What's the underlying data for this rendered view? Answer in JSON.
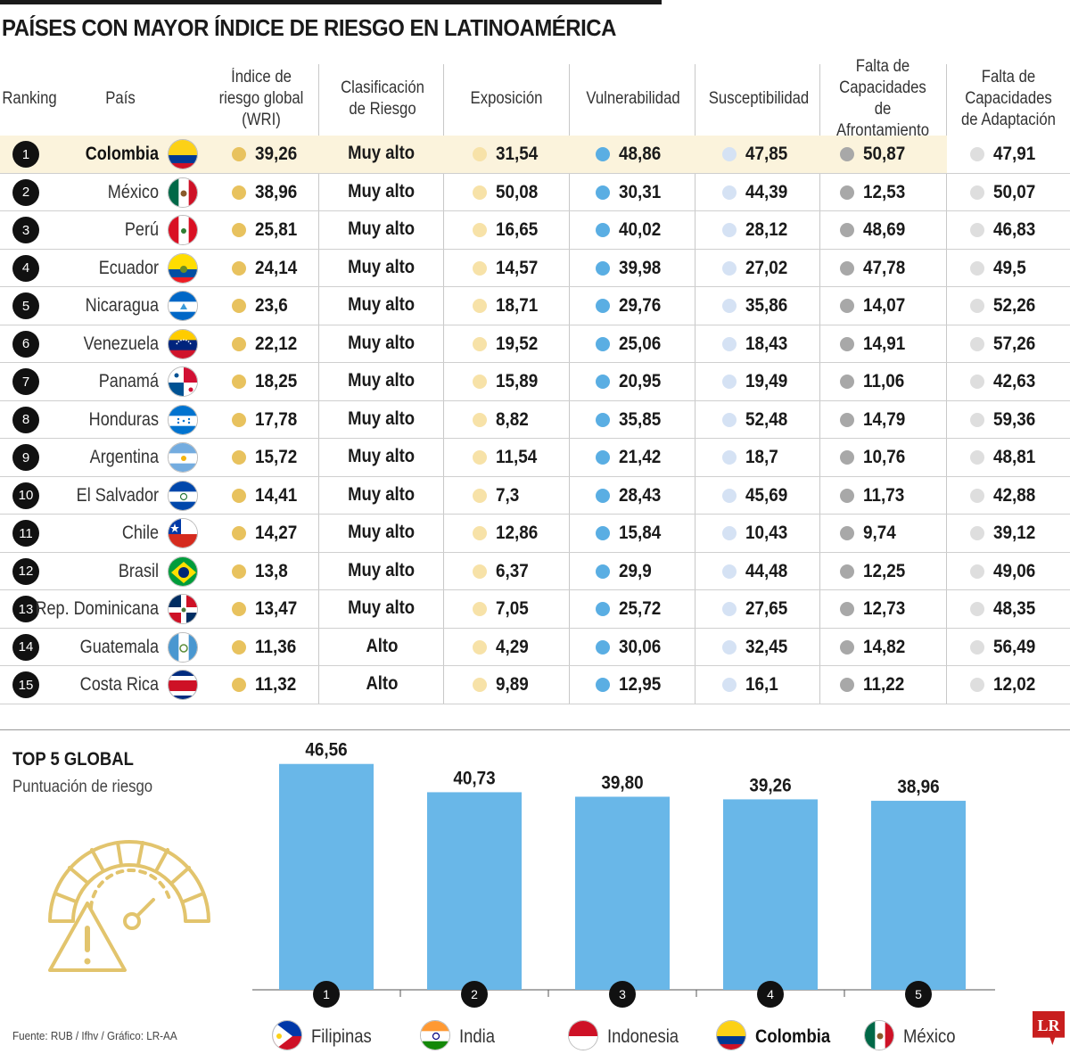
{
  "title": "PAÍSES CON MAYOR ÍNDICE DE RIESGO EN LATINOAMÉRICA",
  "columns": {
    "ranking": "Ranking",
    "pais": "País",
    "wri": "Índice de riesgo global (WRI)",
    "clasificacion": "Clasificación de Riesgo",
    "exposicion": "Exposición",
    "vulnerabilidad": "Vulnerabilidad",
    "susceptibilidad": "Susceptibilidad",
    "afrontamiento": "Falta de Capacidades de Afrontamiento",
    "adaptacion": "Falta de Capacidades de Adaptación"
  },
  "colors": {
    "wri": "#e8c25e",
    "exposicion": "#f7e2a8",
    "vulnerabilidad": "#5aaee3",
    "susceptibilidad": "#d5e2f4",
    "afrontamiento": "#a8a8a8",
    "adaptacion": "#dedede",
    "bar": "#69b7e8",
    "highlight_row": "#fbf3dc"
  },
  "rows": [
    {
      "rank": "1",
      "country": "Colombia",
      "flag": "colombia",
      "wri": "39,26",
      "clasificacion": "Muy alto",
      "exposicion": "31,54",
      "vulnerabilidad": "48,86",
      "susceptibilidad": "47,85",
      "afrontamiento": "50,87",
      "adaptacion": "47,91",
      "highlight": true
    },
    {
      "rank": "2",
      "country": "México",
      "flag": "mexico",
      "wri": "38,96",
      "clasificacion": "Muy alto",
      "exposicion": "50,08",
      "vulnerabilidad": "30,31",
      "susceptibilidad": "44,39",
      "afrontamiento": "12,53",
      "adaptacion": "50,07"
    },
    {
      "rank": "3",
      "country": "Perú",
      "flag": "peru",
      "wri": "25,81",
      "clasificacion": "Muy alto",
      "exposicion": "16,65",
      "vulnerabilidad": "40,02",
      "susceptibilidad": "28,12",
      "afrontamiento": "48,69",
      "adaptacion": "46,83"
    },
    {
      "rank": "4",
      "country": "Ecuador",
      "flag": "ecuador",
      "wri": "24,14",
      "clasificacion": "Muy alto",
      "exposicion": "14,57",
      "vulnerabilidad": "39,98",
      "susceptibilidad": "27,02",
      "afrontamiento": "47,78",
      "adaptacion": "49,5"
    },
    {
      "rank": "5",
      "country": "Nicaragua",
      "flag": "nicaragua",
      "wri": "23,6",
      "clasificacion": "Muy alto",
      "exposicion": "18,71",
      "vulnerabilidad": "29,76",
      "susceptibilidad": "35,86",
      "afrontamiento": "14,07",
      "adaptacion": "52,26"
    },
    {
      "rank": "6",
      "country": "Venezuela",
      "flag": "venezuela",
      "wri": "22,12",
      "clasificacion": "Muy alto",
      "exposicion": "19,52",
      "vulnerabilidad": "25,06",
      "susceptibilidad": "18,43",
      "afrontamiento": "14,91",
      "adaptacion": "57,26"
    },
    {
      "rank": "7",
      "country": "Panamá",
      "flag": "panama",
      "wri": "18,25",
      "clasificacion": "Muy alto",
      "exposicion": "15,89",
      "vulnerabilidad": "20,95",
      "susceptibilidad": "19,49",
      "afrontamiento": "11,06",
      "adaptacion": "42,63"
    },
    {
      "rank": "8",
      "country": "Honduras",
      "flag": "honduras",
      "wri": "17,78",
      "clasificacion": "Muy alto",
      "exposicion": "8,82",
      "vulnerabilidad": "35,85",
      "susceptibilidad": "52,48",
      "afrontamiento": "14,79",
      "adaptacion": "59,36"
    },
    {
      "rank": "9",
      "country": "Argentina",
      "flag": "argentina",
      "wri": "15,72",
      "clasificacion": "Muy alto",
      "exposicion": "11,54",
      "vulnerabilidad": "21,42",
      "susceptibilidad": "18,7",
      "afrontamiento": "10,76",
      "adaptacion": "48,81"
    },
    {
      "rank": "10",
      "country": "El Salvador",
      "flag": "elsalvador",
      "wri": "14,41",
      "clasificacion": "Muy alto",
      "exposicion": "7,3",
      "vulnerabilidad": "28,43",
      "susceptibilidad": "45,69",
      "afrontamiento": "11,73",
      "adaptacion": "42,88"
    },
    {
      "rank": "11",
      "country": "Chile",
      "flag": "chile",
      "wri": "14,27",
      "clasificacion": "Muy alto",
      "exposicion": "12,86",
      "vulnerabilidad": "15,84",
      "susceptibilidad": "10,43",
      "afrontamiento": "9,74",
      "adaptacion": "39,12"
    },
    {
      "rank": "12",
      "country": "Brasil",
      "flag": "brasil",
      "wri": "13,8",
      "clasificacion": "Muy alto",
      "exposicion": "6,37",
      "vulnerabilidad": "29,9",
      "susceptibilidad": "44,48",
      "afrontamiento": "12,25",
      "adaptacion": "49,06"
    },
    {
      "rank": "13",
      "country": "Rep. Dominicana",
      "flag": "repdominicana",
      "wri": "13,47",
      "clasificacion": "Muy alto",
      "exposicion": "7,05",
      "vulnerabilidad": "25,72",
      "susceptibilidad": "27,65",
      "afrontamiento": "12,73",
      "adaptacion": "48,35"
    },
    {
      "rank": "14",
      "country": "Guatemala",
      "flag": "guatemala",
      "wri": "11,36",
      "clasificacion": "Alto",
      "exposicion": "4,29",
      "vulnerabilidad": "30,06",
      "susceptibilidad": "32,45",
      "afrontamiento": "14,82",
      "adaptacion": "56,49"
    },
    {
      "rank": "15",
      "country": "Costa Rica",
      "flag": "costarica",
      "wri": "11,32",
      "clasificacion": "Alto",
      "exposicion": "9,89",
      "vulnerabilidad": "12,95",
      "susceptibilidad": "16,1",
      "afrontamiento": "11,22",
      "adaptacion": "12,02"
    }
  ],
  "top5": {
    "title": "TOP 5 GLOBAL",
    "subtitle": "Puntuación de riesgo",
    "icon": "gauge-warning-icon"
  },
  "source": "Fuente: RUB / Ifhv / Gráfico: LR-AA",
  "logo": "LR",
  "chart_data": [
    {
      "type": "table",
      "title": "PAÍSES CON MAYOR ÍNDICE DE RIESGO EN LATINOAMÉRICA",
      "note": "same values as rows[]"
    },
    {
      "type": "bar",
      "title": "TOP 5 GLOBAL",
      "subtitle": "Puntuación de riesgo",
      "categories": [
        "Filipinas",
        "India",
        "Indonesia",
        "Colombia",
        "México"
      ],
      "ranks": [
        "1",
        "2",
        "3",
        "4",
        "5"
      ],
      "flags": [
        "filipinas",
        "india",
        "indonesia",
        "colombia",
        "mexico"
      ],
      "values": [
        46.56,
        40.73,
        39.8,
        39.26,
        38.96
      ],
      "labels": [
        "46,56",
        "40,73",
        "39,80",
        "39,26",
        "38,96"
      ],
      "highlight": "Colombia",
      "ylim": [
        0,
        50
      ],
      "grid": false,
      "xlabel": "",
      "ylabel": ""
    }
  ]
}
